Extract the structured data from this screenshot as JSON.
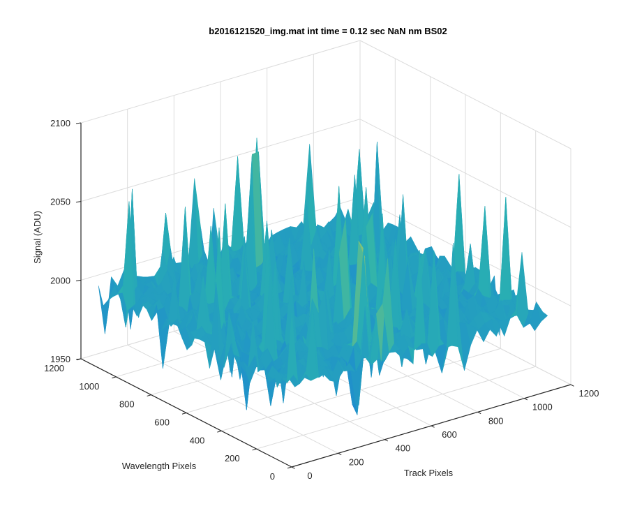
{
  "chart_data": {
    "type": "surface",
    "title": "b2016121520_img.mat int time = 0.12 sec  NaN nm BS02",
    "xlabel": "Track Pixels",
    "ylabel": "Wavelength Pixels",
    "zlabel": "Signal (ADU)",
    "xlim": [
      0,
      1200
    ],
    "ylim": [
      0,
      1200
    ],
    "zlim": [
      1950,
      2100
    ],
    "x_data_range": [
      0,
      1100
    ],
    "y_data_range": [
      0,
      1100
    ],
    "xticks": [
      "0",
      "200",
      "400",
      "600",
      "800",
      "1000",
      "1200"
    ],
    "yticks": [
      "0",
      "200",
      "400",
      "600",
      "800",
      "1000",
      "1200"
    ],
    "zticks": [
      "1950",
      "2000",
      "2050",
      "2100"
    ],
    "grid": true,
    "colormap": "parula",
    "signal_mean": 2000,
    "signal_noise_min": 1965,
    "signal_noise_max": 2070,
    "colors": {
      "low": "#1a7fd8",
      "mid": "#2ab2b0",
      "high": "#d9d240",
      "grid": "#dcdcdc",
      "axis": "#262626"
    }
  }
}
